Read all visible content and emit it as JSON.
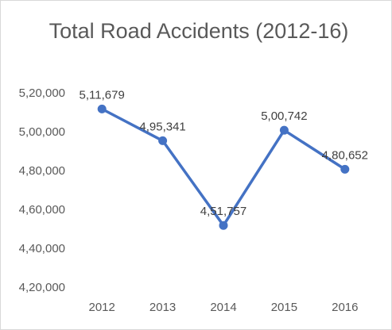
{
  "chart_data": {
    "type": "line",
    "title": "Total Road Accidents (2012-16)",
    "categories": [
      "2012",
      "2013",
      "2014",
      "2015",
      "2016"
    ],
    "series": [
      {
        "values": [
          511679,
          495341,
          451757,
          500742,
          480652
        ],
        "data_labels": [
          "5,11,679",
          "4,95,341",
          "4,51,757",
          "5,00,742",
          "4,80,652"
        ]
      }
    ],
    "ylim": [
      420000,
      520000
    ],
    "y_ticks": [
      420000,
      440000,
      460000,
      480000,
      500000,
      520000
    ],
    "y_tick_labels": [
      "4,20,000",
      "4,40,000",
      "4,60,000",
      "4,80,000",
      "5,00,000",
      "5,20,000"
    ],
    "grid": false,
    "colors": {
      "line": "#4472c4",
      "marker": "#4472c4"
    }
  }
}
